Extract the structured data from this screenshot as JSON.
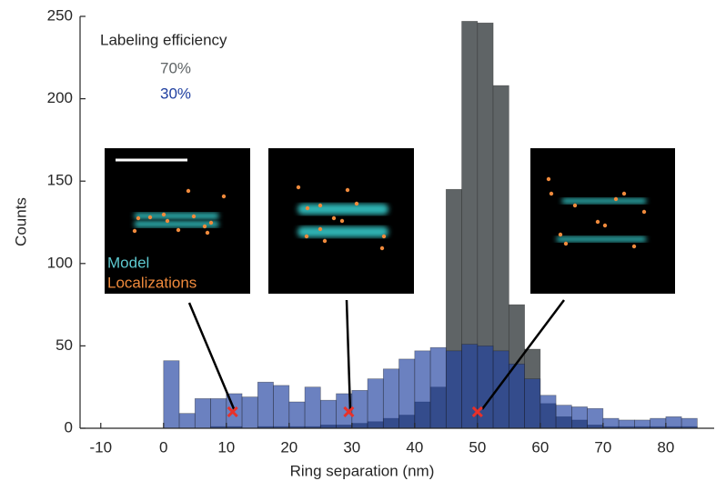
{
  "chart_data": {
    "type": "histogram",
    "xlabel": "Ring separation (nm)",
    "ylabel": "Counts",
    "legend_title": "Labeling efficiency",
    "bins": [
      0,
      2.5,
      5,
      7.5,
      10,
      12.5,
      15,
      17.5,
      20,
      22.5,
      25,
      27.5,
      30,
      32.5,
      35,
      37.5,
      40,
      42.5,
      45,
      47.5,
      50,
      52.5,
      55,
      57.5,
      60,
      62.5,
      65,
      67.5,
      70,
      72.5,
      75,
      77.5,
      80,
      82.5,
      85
    ],
    "series": [
      {
        "name": "70%",
        "color": "#5f6466",
        "opacity": 1,
        "values": [
          0,
          0,
          0,
          1,
          1,
          0,
          1,
          1,
          1,
          1,
          2,
          2,
          3,
          4,
          6,
          8,
          16,
          25,
          145,
          247,
          246,
          208,
          75,
          48,
          15,
          7,
          5,
          2,
          1,
          1,
          1,
          1,
          1,
          1
        ]
      },
      {
        "name": "30%",
        "color": "#1f3fa0",
        "opacity": 0.66,
        "values": [
          41,
          9,
          18,
          18,
          21,
          19,
          28,
          26,
          16,
          25,
          17,
          21,
          23,
          30,
          36,
          42,
          47,
          49,
          47,
          51,
          50,
          47,
          39,
          30,
          20,
          14,
          13,
          12,
          6,
          5,
          5,
          6,
          7,
          6
        ]
      }
    ],
    "markers": {
      "x": [
        11,
        29.5,
        50
      ],
      "y": [
        10,
        10,
        10
      ],
      "color": "#e8312a"
    },
    "inset_labels": [
      "Model",
      "Localizations"
    ],
    "xlim": [
      -13.3,
      87.7
    ],
    "ylim": [
      0,
      250
    ],
    "xticks": [
      -10,
      0,
      10,
      20,
      30,
      40,
      50,
      60,
      70,
      80
    ],
    "yticks": [
      0,
      50,
      100,
      150,
      200,
      250
    ]
  }
}
